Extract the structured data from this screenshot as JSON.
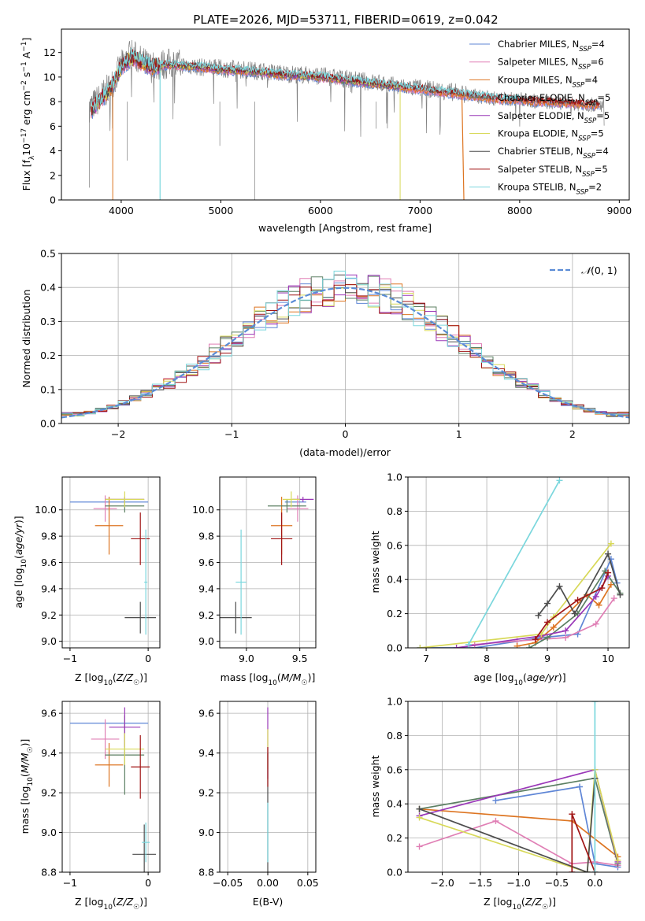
{
  "colors": {
    "chabrier_miles": "#5f86d6",
    "salpeter_miles": "#e07fb5",
    "kroupa_miles": "#dd7522",
    "chabrier_elodie": "#5b7f62",
    "salpeter_elodie": "#9a38b8",
    "kroupa_elodie": "#d8d95a",
    "chabrier_stelib": "#4d4d4d",
    "salpeter_stelib": "#a01414",
    "kroupa_stelib": "#7bd7dd",
    "normal": "#5b8cd6"
  },
  "chart_data": [
    {
      "id": "spectrum",
      "type": "line",
      "title": "PLATE=2026, MJD=53711, FIBERID=0619, z=0.042",
      "xlabel": "wavelength [Angstrom, rest frame]",
      "ylabel": "Flux [fλ10⁻¹⁷ erg cm⁻² s⁻¹ A⁻¹]",
      "xlim": [
        3400,
        9100
      ],
      "ylim": [
        0,
        13.9
      ],
      "xticks": [
        4000,
        5000,
        6000,
        7000,
        8000,
        9000
      ],
      "yticks": [
        0,
        2,
        4,
        6,
        8,
        10,
        12
      ],
      "legend_position": "top-right",
      "legend": [
        "Chabrier MILES, N_SSP=4",
        "Salpeter MILES, N_SSP=6",
        "Kroupa MILES, N_SSP=4",
        "Chabrier ELODIE, N_SSP=5",
        "Salpeter ELODIE, N_SSP=5",
        "Kroupa ELODIE, N_SSP=5",
        "Chabrier STELIB, N_SSP=4",
        "Salpeter STELIB, N_SSP=5",
        "Kroupa STELIB, N_SSP=2"
      ],
      "legend_display": [
        {
          "pre": "Chabrier MILES, N",
          "sub": "SSP",
          "post": "=4"
        },
        {
          "pre": "Salpeter MILES, N",
          "sub": "SSP",
          "post": "=6"
        },
        {
          "pre": "Kroupa MILES, N",
          "sub": "SSP",
          "post": "=4"
        },
        {
          "pre": "Chabrier ELODIE, N",
          "sub": "SSP",
          "post": "=5"
        },
        {
          "pre": "Salpeter ELODIE, N",
          "sub": "SSP",
          "post": "=5"
        },
        {
          "pre": "Kroupa ELODIE, N",
          "sub": "SSP",
          "post": "=5"
        },
        {
          "pre": "Chabrier STELIB, N",
          "sub": "SSP",
          "post": "=4"
        },
        {
          "pre": "Salpeter STELIB, N",
          "sub": "SSP",
          "post": "=5"
        },
        {
          "pre": "Kroupa STELIB, N",
          "sub": "SSP",
          "post": "=2"
        }
      ],
      "data_wavelength": [
        3700,
        3800,
        3900,
        4000,
        4100,
        4200,
        4300,
        4400,
        4500,
        4600,
        4800,
        5000,
        5200,
        5400,
        5600,
        5800,
        6000,
        6200,
        6400,
        6600,
        6800,
        7000,
        7200,
        7400,
        7600,
        7800,
        8000,
        8200,
        8400,
        8600,
        8800
      ],
      "data_flux": [
        7.6,
        8.4,
        9.3,
        10.9,
        11.9,
        11.3,
        10.8,
        11.0,
        11.1,
        11.0,
        10.8,
        10.7,
        10.6,
        10.5,
        10.3,
        10.2,
        10.1,
        9.9,
        9.7,
        9.5,
        9.2,
        9.1,
        8.9,
        8.7,
        8.4,
        8.2,
        8.2,
        8.0,
        7.9,
        7.8,
        7.7
      ],
      "model_flux": [
        7.3,
        8.2,
        9.1,
        10.8,
        11.6,
        11.2,
        10.8,
        10.9,
        11.0,
        10.9,
        10.8,
        10.6,
        10.5,
        10.4,
        10.2,
        10.1,
        10.0,
        9.8,
        9.6,
        9.4,
        9.2,
        9.0,
        8.8,
        8.6,
        8.4,
        8.2,
        8.1,
        8.0,
        7.9,
        7.8,
        7.7
      ],
      "model_cutoff": {
        "kroupa_elodie": 6800,
        "salpeter_stelib": 7420,
        "kroupa_stelib_gap": 4390
      }
    },
    {
      "id": "residuals",
      "type": "histogram",
      "xlabel": "(data-model)/error",
      "ylabel": "Normed distribution",
      "xlim": [
        -2.5,
        2.5
      ],
      "ylim": [
        0,
        0.5
      ],
      "xticks": [
        -2,
        -1,
        0,
        1,
        2
      ],
      "yticks": [
        0.0,
        0.1,
        0.2,
        0.3,
        0.4,
        0.5
      ],
      "legend_position": "top-right",
      "curve_label": "N(0,1)",
      "bin_width": 0.1,
      "approx_bin_heights": [
        0.02,
        0.02,
        0.03,
        0.04,
        0.06,
        0.09,
        0.11,
        0.13,
        0.15,
        0.17,
        0.2,
        0.23,
        0.26,
        0.29,
        0.31,
        0.33,
        0.34,
        0.36,
        0.38,
        0.39,
        0.41,
        0.4,
        0.39,
        0.38,
        0.37,
        0.35,
        0.33,
        0.3,
        0.28,
        0.26,
        0.23,
        0.2,
        0.17,
        0.15,
        0.12,
        0.1,
        0.08,
        0.06,
        0.05,
        0.04,
        0.03,
        0.02,
        0.02,
        0.02,
        0.02,
        0.02,
        0.02,
        0.02,
        0.02,
        0.02
      ]
    },
    {
      "id": "age_vs_Z",
      "type": "scatter",
      "xlabel": "Z [log10(Z/Z☉)]",
      "ylabel": "age [log10(age/yr)]",
      "xlim": [
        -1.1,
        0.15
      ],
      "ylim": [
        8.95,
        10.25
      ],
      "xticks": [
        -1,
        0
      ],
      "yticks": [
        9.0,
        9.2,
        9.4,
        9.6,
        9.8,
        10.0
      ],
      "points": [
        {
          "k": "chabrier_miles",
          "x": -0.5,
          "xe": 0.5,
          "y": 10.06,
          "ye": 0.0
        },
        {
          "k": "salpeter_miles",
          "x": -0.55,
          "xe": 0.15,
          "y": 10.01,
          "ye": 0.1
        },
        {
          "k": "kroupa_miles",
          "x": -0.5,
          "xe": 0.18,
          "y": 9.88,
          "ye": 0.22
        },
        {
          "k": "chabrier_elodie",
          "x": -0.3,
          "xe": 0.25,
          "y": 10.03,
          "ye": 0.05
        },
        {
          "k": "salpeter_elodie",
          "x": -0.3,
          "xe": 0.25,
          "y": 10.08,
          "ye": 0.02
        },
        {
          "k": "kroupa_elodie",
          "x": -0.3,
          "xe": 0.25,
          "y": 10.08,
          "ye": 0.06
        },
        {
          "k": "chabrier_stelib",
          "x": -0.1,
          "xe": 0.2,
          "y": 9.18,
          "ye": 0.12
        },
        {
          "k": "salpeter_stelib",
          "x": -0.1,
          "xe": 0.12,
          "y": 9.78,
          "ye": 0.2
        },
        {
          "k": "kroupa_stelib",
          "x": -0.03,
          "xe": 0.02,
          "y": 9.45,
          "ye": 0.4
        }
      ]
    },
    {
      "id": "age_vs_mass",
      "type": "scatter",
      "xlabel": "mass [log10(M/M☉)]",
      "ylabel": "",
      "xlim": [
        8.75,
        9.65
      ],
      "ylim": [
        8.95,
        10.25
      ],
      "xticks": [
        9.0,
        9.5
      ],
      "yticks": [
        9.0,
        9.2,
        9.4,
        9.6,
        9.8,
        10.0
      ],
      "points": [
        {
          "k": "chabrier_miles",
          "x": 9.46,
          "xe": 0.1,
          "y": 10.06,
          "ye": 0.0
        },
        {
          "k": "salpeter_miles",
          "x": 9.48,
          "xe": 0.1,
          "y": 10.01,
          "ye": 0.1
        },
        {
          "k": "kroupa_miles",
          "x": 9.33,
          "xe": 0.1,
          "y": 9.88,
          "ye": 0.22
        },
        {
          "k": "chabrier_elodie",
          "x": 9.38,
          "xe": 0.18,
          "y": 10.03,
          "ye": 0.05
        },
        {
          "k": "salpeter_elodie",
          "x": 9.53,
          "xe": 0.1,
          "y": 10.08,
          "ye": 0.02
        },
        {
          "k": "kroupa_elodie",
          "x": 9.42,
          "xe": 0.08,
          "y": 10.08,
          "ye": 0.06
        },
        {
          "k": "chabrier_stelib",
          "x": 8.9,
          "xe": 0.15,
          "y": 9.18,
          "ye": 0.12
        },
        {
          "k": "salpeter_stelib",
          "x": 9.33,
          "xe": 0.1,
          "y": 9.78,
          "ye": 0.2
        },
        {
          "k": "kroupa_stelib",
          "x": 8.95,
          "xe": 0.05,
          "y": 9.45,
          "ye": 0.4
        }
      ]
    },
    {
      "id": "weight_vs_age",
      "type": "line",
      "xlabel": "age [log10(age/yr)]",
      "ylabel": "mass weight",
      "xlim": [
        6.7,
        10.35
      ],
      "ylim": [
        0,
        1.0
      ],
      "xticks": [
        7,
        8,
        9,
        10
      ],
      "yticks": [
        0.0,
        0.2,
        0.4,
        0.6,
        0.8,
        1.0
      ],
      "series": [
        {
          "k": "chabrier_miles",
          "x": [
            6.9,
            7.8,
            8.9,
            9.5,
            10.05,
            10.15
          ],
          "y": [
            0.0,
            0.0,
            0.06,
            0.08,
            0.52,
            0.38
          ]
        },
        {
          "k": "salpeter_miles",
          "x": [
            7.8,
            8.5,
            9.3,
            9.8,
            10.1
          ],
          "y": [
            0.02,
            0.04,
            0.06,
            0.14,
            0.29
          ]
        },
        {
          "k": "kroupa_miles",
          "x": [
            8.5,
            8.8,
            9.1,
            9.65,
            9.85,
            10.05
          ],
          "y": [
            0.01,
            0.03,
            0.12,
            0.31,
            0.25,
            0.37
          ]
        },
        {
          "k": "chabrier_elodie",
          "x": [
            8.7,
            9.0,
            9.5,
            9.95,
            10.2
          ],
          "y": [
            0.0,
            0.06,
            0.2,
            0.45,
            0.32
          ]
        },
        {
          "k": "salpeter_elodie",
          "x": [
            7.5,
            8.9,
            9.3,
            9.8,
            10.0
          ],
          "y": [
            0.0,
            0.07,
            0.1,
            0.3,
            0.42
          ]
        },
        {
          "k": "kroupa_elodie",
          "x": [
            6.9,
            8.9,
            9.1,
            10.05
          ],
          "y": [
            0.0,
            0.08,
            0.18,
            0.61
          ]
        },
        {
          "k": "chabrier_stelib",
          "x": [
            8.85,
            9.0,
            9.2,
            9.45,
            10.0,
            10.2
          ],
          "y": [
            0.19,
            0.26,
            0.36,
            0.2,
            0.55,
            0.31
          ]
        },
        {
          "k": "salpeter_stelib",
          "x": [
            8.8,
            9.0,
            9.5,
            9.9,
            10.0
          ],
          "y": [
            0.05,
            0.15,
            0.28,
            0.35,
            0.44
          ]
        },
        {
          "k": "kroupa_stelib",
          "x": [
            7.7,
            9.2
          ],
          "y": [
            0.02,
            0.98
          ]
        }
      ]
    },
    {
      "id": "mass_vs_Z",
      "type": "scatter",
      "xlabel": "Z [log10(Z/Z☉)]",
      "ylabel": "mass [log10(M/M☉)]",
      "xlim": [
        -1.1,
        0.15
      ],
      "ylim": [
        8.8,
        9.66
      ],
      "xticks": [
        -1,
        0
      ],
      "yticks": [
        8.8,
        9.0,
        9.2,
        9.4,
        9.6
      ],
      "points": [
        {
          "k": "chabrier_miles",
          "x": -0.5,
          "xe": 0.5,
          "y": 9.55,
          "ye": 0.0
        },
        {
          "k": "salpeter_miles",
          "x": -0.55,
          "xe": 0.18,
          "y": 9.47,
          "ye": 0.1
        },
        {
          "k": "kroupa_miles",
          "x": -0.5,
          "xe": 0.18,
          "y": 9.34,
          "ye": 0.11
        },
        {
          "k": "chabrier_elodie",
          "x": -0.3,
          "xe": 0.25,
          "y": 9.39,
          "ye": 0.2
        },
        {
          "k": "salpeter_elodie",
          "x": -0.3,
          "xe": 0.2,
          "y": 9.53,
          "ye": 0.1
        },
        {
          "k": "kroupa_elodie",
          "x": -0.3,
          "xe": 0.25,
          "y": 9.42,
          "ye": 0.08
        },
        {
          "k": "chabrier_stelib",
          "x": -0.05,
          "xe": 0.15,
          "y": 8.89,
          "ye": 0.15
        },
        {
          "k": "salpeter_stelib",
          "x": -0.1,
          "xe": 0.12,
          "y": 9.33,
          "ye": 0.16
        },
        {
          "k": "kroupa_stelib",
          "x": -0.03,
          "xe": 0.05,
          "y": 8.95,
          "ye": 0.1
        }
      ]
    },
    {
      "id": "mass_vs_ebv",
      "type": "scatter",
      "xlabel": "E(B-V)",
      "ylabel": "",
      "xlim": [
        -0.06,
        0.06
      ],
      "ylim": [
        8.8,
        9.66
      ],
      "xticks": [
        -0.05,
        0.0,
        0.05
      ],
      "yticks": [
        8.8,
        9.0,
        9.2,
        9.4,
        9.6
      ],
      "points": [
        {
          "k": "salpeter_elodie",
          "x": 0.0,
          "xe": 0.0,
          "y": 9.45,
          "ye": 0.18
        },
        {
          "k": "kroupa_elodie",
          "x": 0.0,
          "xe": 0.0,
          "y": 9.42,
          "ye": 0.1
        },
        {
          "k": "chabrier_stelib",
          "x": 0.0,
          "xe": 0.0,
          "y": 9.1,
          "ye": 0.3
        },
        {
          "k": "salpeter_stelib",
          "x": 0.0,
          "xe": 0.0,
          "y": 9.33,
          "ye": 0.1
        },
        {
          "k": "kroupa_stelib",
          "x": 0.0,
          "xe": 0.0,
          "y": 9.0,
          "ye": 0.15
        }
      ]
    },
    {
      "id": "weight_vs_Z",
      "type": "line",
      "xlabel": "Z [log10(Z/Z☉)]",
      "ylabel": "mass weight",
      "xlim": [
        -2.45,
        0.45
      ],
      "ylim": [
        0,
        1.0
      ],
      "xticks": [
        -2.0,
        -1.5,
        -1.0,
        -0.5,
        0.0
      ],
      "yticks": [
        0.0,
        0.2,
        0.4,
        0.6,
        0.8,
        1.0
      ],
      "series": [
        {
          "k": "chabrier_miles",
          "x": [
            -1.3,
            -0.2,
            0.0,
            0.3
          ],
          "y": [
            0.42,
            0.5,
            0.05,
            0.03
          ]
        },
        {
          "k": "salpeter_miles",
          "x": [
            -2.3,
            -1.3,
            -0.3,
            0.0,
            0.3
          ],
          "y": [
            0.15,
            0.3,
            0.05,
            0.06,
            0.04
          ]
        },
        {
          "k": "kroupa_miles",
          "x": [
            -2.3,
            -0.3,
            0.3
          ],
          "y": [
            0.37,
            0.3,
            0.09
          ]
        },
        {
          "k": "chabrier_elodie",
          "x": [
            -2.3,
            0.0,
            0.3
          ],
          "y": [
            0.37,
            0.55,
            0.05
          ]
        },
        {
          "k": "salpeter_elodie",
          "x": [
            -2.3,
            0.0,
            0.3
          ],
          "y": [
            0.33,
            0.6,
            0.06
          ]
        },
        {
          "k": "kroupa_elodie",
          "x": [
            -2.3,
            -0.1,
            0.0,
            0.3
          ],
          "y": [
            0.32,
            0.0,
            0.6,
            0.07
          ]
        },
        {
          "k": "chabrier_stelib",
          "x": [
            -2.3,
            -0.1,
            0.0
          ],
          "y": [
            0.37,
            0.0,
            0.55
          ]
        },
        {
          "k": "salpeter_stelib",
          "x": [
            -0.3,
            -0.3,
            0.0
          ],
          "y": [
            0.0,
            0.34,
            0.0
          ]
        },
        {
          "k": "kroupa_stelib",
          "x": [
            0.0,
            0.0
          ],
          "y": [
            0.0,
            1.0
          ]
        }
      ]
    }
  ]
}
